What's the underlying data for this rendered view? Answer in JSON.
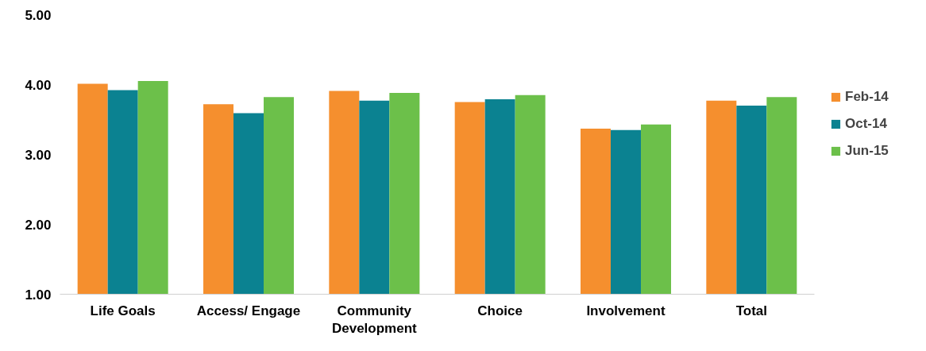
{
  "chart_data": {
    "type": "bar",
    "categories": [
      "Life Goals",
      "Access/ Engage",
      "Community Development",
      "Choice",
      "Involvement",
      "Total"
    ],
    "series": [
      {
        "name": "Feb-14",
        "color": "#f58f2e",
        "values": [
          4.01,
          3.72,
          3.91,
          3.75,
          3.37,
          3.77
        ]
      },
      {
        "name": "Oct-14",
        "color": "#0b8291",
        "values": [
          3.92,
          3.59,
          3.77,
          3.79,
          3.35,
          3.7
        ]
      },
      {
        "name": "Jun-15",
        "color": "#6cc04a",
        "values": [
          4.05,
          3.82,
          3.88,
          3.85,
          3.43,
          3.82
        ]
      }
    ],
    "ylim": [
      1,
      5
    ],
    "yticks": [
      {
        "value": 1,
        "label": "1.00"
      },
      {
        "value": 2,
        "label": "2.00"
      },
      {
        "value": 3,
        "label": "3.00"
      },
      {
        "value": 4,
        "label": "4.00"
      },
      {
        "value": 5,
        "label": "5.00"
      }
    ],
    "grid": false,
    "legend": "right"
  }
}
